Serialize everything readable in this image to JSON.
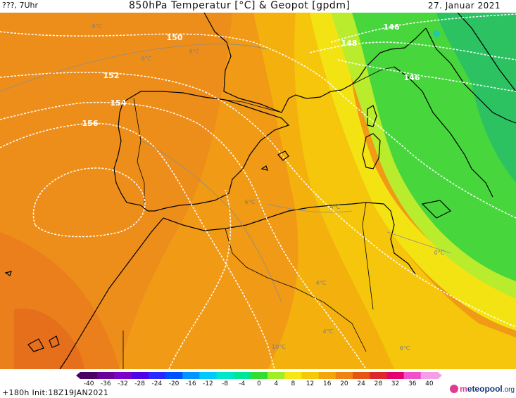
{
  "header": {
    "run_label": "???, 7Uhr",
    "title": "850hPa Temperatur [°C] & Geopot [gpdm]",
    "date": "27. Januar 2021"
  },
  "footer": {
    "run_info": "+180h  Init:18Z19JAN2021",
    "brand": "meteopool",
    "brand_tld": ".org"
  },
  "colors": {
    "orange_warm": "#ee8c1a",
    "orange": "#f2a012",
    "amber": "#f5b80c",
    "yellow": "#f5e110",
    "lime": "#b8ec2a",
    "green": "#43d53b",
    "green_dark": "#2bbf62",
    "coast": "#000000",
    "isohypse": "#ffffff",
    "isotherm": "#8c8c8c"
  },
  "colorbar": {
    "labels": [
      "-40",
      "-36",
      "-32",
      "-28",
      "-24",
      "-20",
      "-16",
      "-12",
      "-8",
      "-4",
      "0",
      "4",
      "8",
      "12",
      "16",
      "20",
      "24",
      "28",
      "32",
      "36",
      "40"
    ],
    "colors": [
      "#4b0064",
      "#6a0099",
      "#7d00c8",
      "#5000e6",
      "#2828ff",
      "#0050ff",
      "#0096ff",
      "#00c8ff",
      "#00e6c8",
      "#00e696",
      "#32dc32",
      "#a0ee28",
      "#f5e614",
      "#f5c80a",
      "#f5a50a",
      "#ee8214",
      "#e65514",
      "#dc2828",
      "#e6006e",
      "#f050c8",
      "#f5a0e6"
    ]
  },
  "isohypse_labels": [
    "146",
    "148",
    "146",
    "150",
    "152",
    "154",
    "156"
  ],
  "isotherm_labels": [
    "6°C",
    "6°C",
    "6°C",
    "0°C",
    "4°C",
    "6°C",
    "4°C",
    "4°C",
    "10°C",
    "6°C"
  ]
}
